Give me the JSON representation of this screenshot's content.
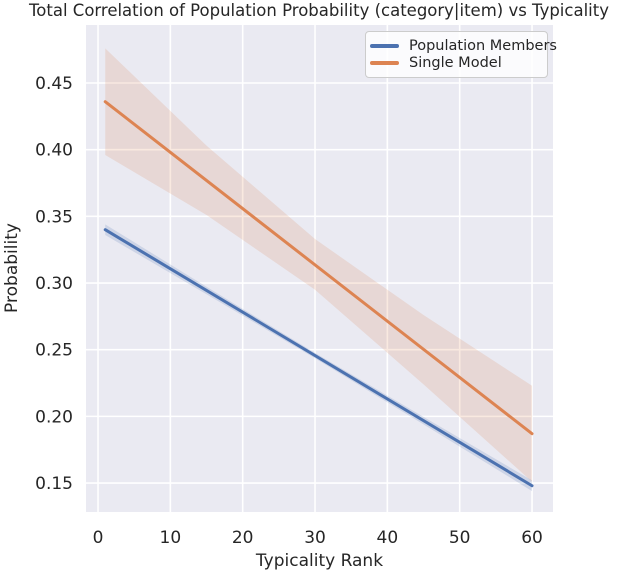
{
  "title": "Total Correlation of Population Probability (category|item) vs Typicality",
  "colors": {
    "figure_bg": "#ffffff",
    "axes_bg": "#eaeaf2",
    "grid": "#ffffff",
    "text": "#262626",
    "legend_border": "#cccccc"
  },
  "legend": {
    "items": [
      {
        "label": "Population Members",
        "color": "#4c72b0"
      },
      {
        "label": "Single Model",
        "color": "#dd8452"
      }
    ]
  },
  "chart_data": {
    "type": "line",
    "title": "Total Correlation of Population Probability (category|item) vs Typicality",
    "xlabel": "Typicality Rank",
    "ylabel": "Probability",
    "xlim": [
      -1.66,
      62.9
    ],
    "ylim": [
      0.1283,
      0.4935
    ],
    "xticks": [
      0,
      10,
      20,
      30,
      40,
      50,
      60
    ],
    "yticks": [
      0.15,
      0.2,
      0.25,
      0.3,
      0.35,
      0.4,
      0.45
    ],
    "grid": true,
    "legend_position": "upper right inside axes",
    "series": [
      {
        "name": "Population Members",
        "color": "#4c72b0",
        "x": [
          1,
          60
        ],
        "y": [
          0.34,
          0.148
        ],
        "ci_band": {
          "x": [
            1,
            15,
            30,
            45,
            60
          ],
          "upper": [
            0.344,
            0.2972,
            0.2476,
            0.1996,
            0.152
          ],
          "lower": [
            0.336,
            0.2916,
            0.2436,
            0.194,
            0.144
          ]
        }
      },
      {
        "name": "Single Model",
        "color": "#dd8452",
        "x": [
          1,
          60
        ],
        "y": [
          0.436,
          0.187
        ],
        "ci_band": {
          "x": [
            1,
            15,
            30,
            45,
            60
          ],
          "upper": [
            0.476,
            0.403,
            0.333,
            0.276,
            0.223
          ],
          "lower": [
            0.396,
            0.351,
            0.295,
            0.224,
            0.151
          ]
        }
      }
    ]
  }
}
